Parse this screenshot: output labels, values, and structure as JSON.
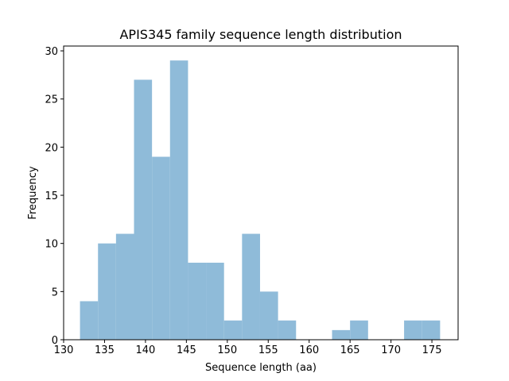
{
  "chart_data": {
    "type": "bar",
    "subtype": "histogram",
    "title": "APIS345 family sequence length distribution",
    "xlabel": "Sequence length (aa)",
    "ylabel": "Frequency",
    "xlim": [
      130,
      178.2
    ],
    "ylim": [
      0,
      30.5
    ],
    "xticks": [
      130,
      135,
      140,
      145,
      150,
      155,
      160,
      165,
      170,
      175
    ],
    "yticks": [
      0,
      5,
      10,
      15,
      20,
      25,
      30
    ],
    "grid": false,
    "bar_color": "#8fbbd9",
    "bins": [
      {
        "x0": 132.0,
        "x1": 134.2,
        "count": 4
      },
      {
        "x0": 134.2,
        "x1": 136.4,
        "count": 10
      },
      {
        "x0": 136.4,
        "x1": 138.6,
        "count": 11
      },
      {
        "x0": 138.6,
        "x1": 140.8,
        "count": 27
      },
      {
        "x0": 140.8,
        "x1": 143.0,
        "count": 19
      },
      {
        "x0": 143.0,
        "x1": 145.2,
        "count": 29
      },
      {
        "x0": 145.2,
        "x1": 147.4,
        "count": 8
      },
      {
        "x0": 147.4,
        "x1": 149.6,
        "count": 8
      },
      {
        "x0": 149.6,
        "x1": 151.8,
        "count": 2
      },
      {
        "x0": 151.8,
        "x1": 154.0,
        "count": 11
      },
      {
        "x0": 154.0,
        "x1": 156.2,
        "count": 5
      },
      {
        "x0": 156.2,
        "x1": 158.4,
        "count": 2
      },
      {
        "x0": 158.4,
        "x1": 160.6,
        "count": 0
      },
      {
        "x0": 160.6,
        "x1": 162.8,
        "count": 0
      },
      {
        "x0": 162.8,
        "x1": 165.0,
        "count": 1
      },
      {
        "x0": 165.0,
        "x1": 167.2,
        "count": 2
      },
      {
        "x0": 167.2,
        "x1": 169.4,
        "count": 0
      },
      {
        "x0": 169.4,
        "x1": 171.6,
        "count": 0
      },
      {
        "x0": 171.6,
        "x1": 173.8,
        "count": 2
      },
      {
        "x0": 173.8,
        "x1": 176.0,
        "count": 2
      }
    ]
  }
}
